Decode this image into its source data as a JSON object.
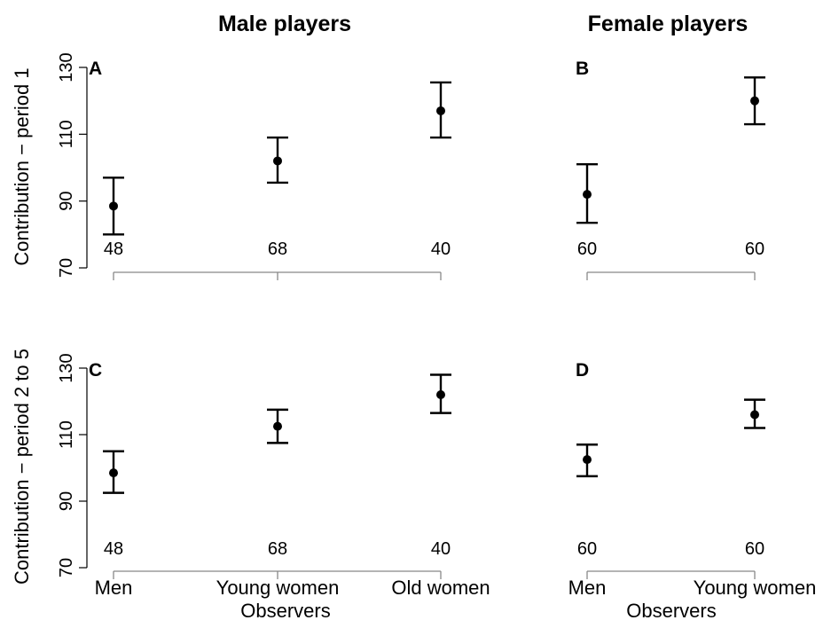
{
  "figure": {
    "column_titles": [
      "Male players",
      "Female players"
    ],
    "row_ylabels": [
      "Contribution − period 1",
      "Contribution − period 2 to 5"
    ]
  },
  "chart_data": [
    {
      "panel": "A",
      "type": "scatter",
      "title": "",
      "xlabel": "",
      "ylabel": "Contribution − period 1",
      "ylim": [
        70,
        130
      ],
      "yticks": [
        70,
        90,
        110,
        130
      ],
      "categories": [
        "Men",
        "Young women",
        "Old women"
      ],
      "mean": [
        88.5,
        102,
        117
      ],
      "err_low": [
        80,
        95.5,
        109
      ],
      "err_high": [
        97,
        109,
        125.5
      ],
      "n": [
        "48",
        "68",
        "40"
      ],
      "show_x_ticklabels": false
    },
    {
      "panel": "B",
      "type": "scatter",
      "title": "",
      "xlabel": "",
      "ylabel": "",
      "ylim": [
        70,
        130
      ],
      "categories": [
        "Men",
        "Young women"
      ],
      "mean": [
        92,
        120
      ],
      "err_low": [
        83.5,
        113
      ],
      "err_high": [
        101,
        127
      ],
      "n": [
        "60",
        "60"
      ],
      "show_x_ticklabels": false
    },
    {
      "panel": "C",
      "type": "scatter",
      "title": "",
      "xlabel": "Observers",
      "ylabel": "Contribution − period 2 to 5",
      "ylim": [
        70,
        130
      ],
      "yticks": [
        70,
        90,
        110,
        130
      ],
      "categories": [
        "Men",
        "Young women",
        "Old women"
      ],
      "mean": [
        98.5,
        112.5,
        122
      ],
      "err_low": [
        92.5,
        107.5,
        116.5
      ],
      "err_high": [
        105,
        117.5,
        128
      ],
      "n": [
        "48",
        "68",
        "40"
      ],
      "show_x_ticklabels": true
    },
    {
      "panel": "D",
      "type": "scatter",
      "title": "",
      "xlabel": "Observers",
      "ylabel": "",
      "ylim": [
        70,
        130
      ],
      "categories": [
        "Men",
        "Young women"
      ],
      "mean": [
        102.5,
        116
      ],
      "err_low": [
        97.5,
        112
      ],
      "err_high": [
        107,
        120.5
      ],
      "n": [
        "60",
        "60"
      ],
      "show_x_ticklabels": true
    }
  ]
}
